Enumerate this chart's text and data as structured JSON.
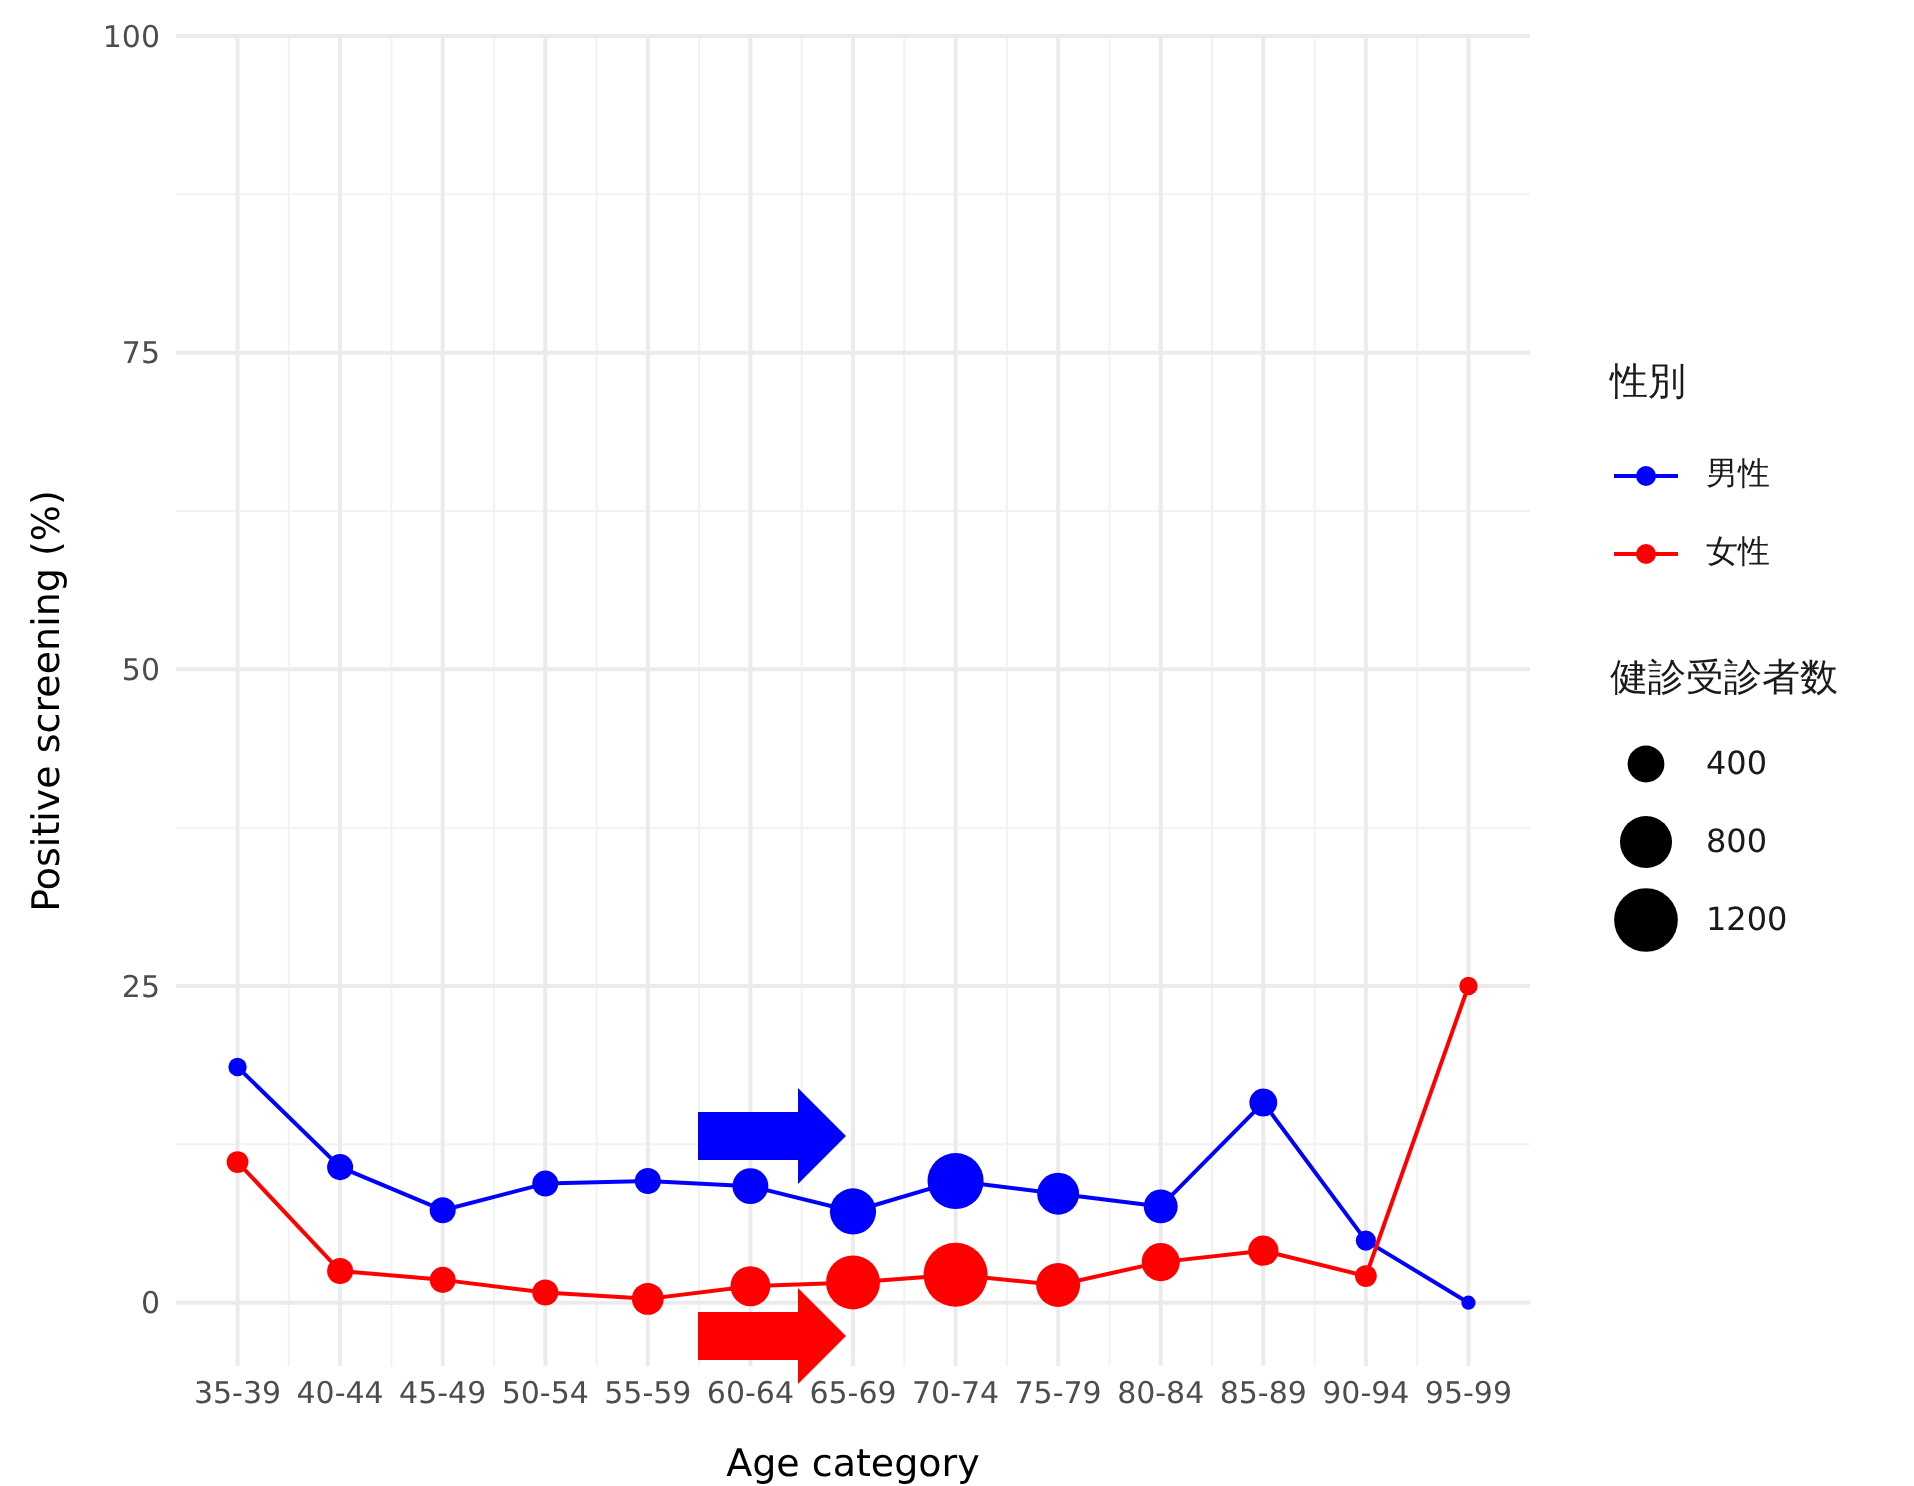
{
  "chart_data": {
    "type": "bubble",
    "xlabel": "Age category",
    "ylabel": "Positive screening (%)",
    "legend_title": "性別",
    "annotations": [
      "健診受診者数"
    ],
    "categories": [
      "35-39",
      "40-44",
      "45-49",
      "50-54",
      "55-59",
      "60-64",
      "65-69",
      "70-74",
      "75-79",
      "80-84",
      "85-89",
      "90-94",
      "95-99"
    ],
    "series": [
      {
        "name": "男性",
        "type": "line",
        "color": "#0000ff",
        "values": [
          18.6,
          10.7,
          7.3,
          9.4,
          9.6,
          9.2,
          7.2,
          9.6,
          8.6,
          7.6,
          15.8,
          4.9,
          0
        ]
      },
      {
        "name": "女性",
        "type": "line",
        "color": "#ff0000",
        "values": [
          11.1,
          2.5,
          1.8,
          0.8,
          0.3,
          1.3,
          1.6,
          2.2,
          1.4,
          3.2,
          4.1,
          2.1,
          25
        ]
      },
      {
        "color": "#0000ff",
        "values": [
          18.6,
          10.7,
          7.3,
          9.4,
          9.6,
          9.2,
          7.2,
          9.6,
          8.6,
          7.6,
          15.8,
          4.9,
          0
        ],
        "sizes": [
          100,
          200,
          200,
          200,
          200,
          380,
          630,
          930,
          520,
          340,
          230,
          120,
          60
        ]
      },
      {
        "color": "#ff0000",
        "values": [
          11.1,
          2.5,
          1.8,
          0.8,
          0.3,
          1.3,
          1.6,
          2.2,
          1.4,
          3.2,
          4.1,
          2.1,
          25
        ],
        "sizes": [
          140,
          200,
          200,
          200,
          300,
          470,
          860,
          1210,
          570,
          430,
          270,
          140,
          100
        ]
      }
    ],
    "size_legend": [
      400,
      800,
      1200
    ],
    "ylim": [
      -5,
      100
    ],
    "yticks": [
      0,
      25,
      50,
      75,
      100
    ],
    "grid": true,
    "legend": "right",
    "line_style": "solid"
  }
}
